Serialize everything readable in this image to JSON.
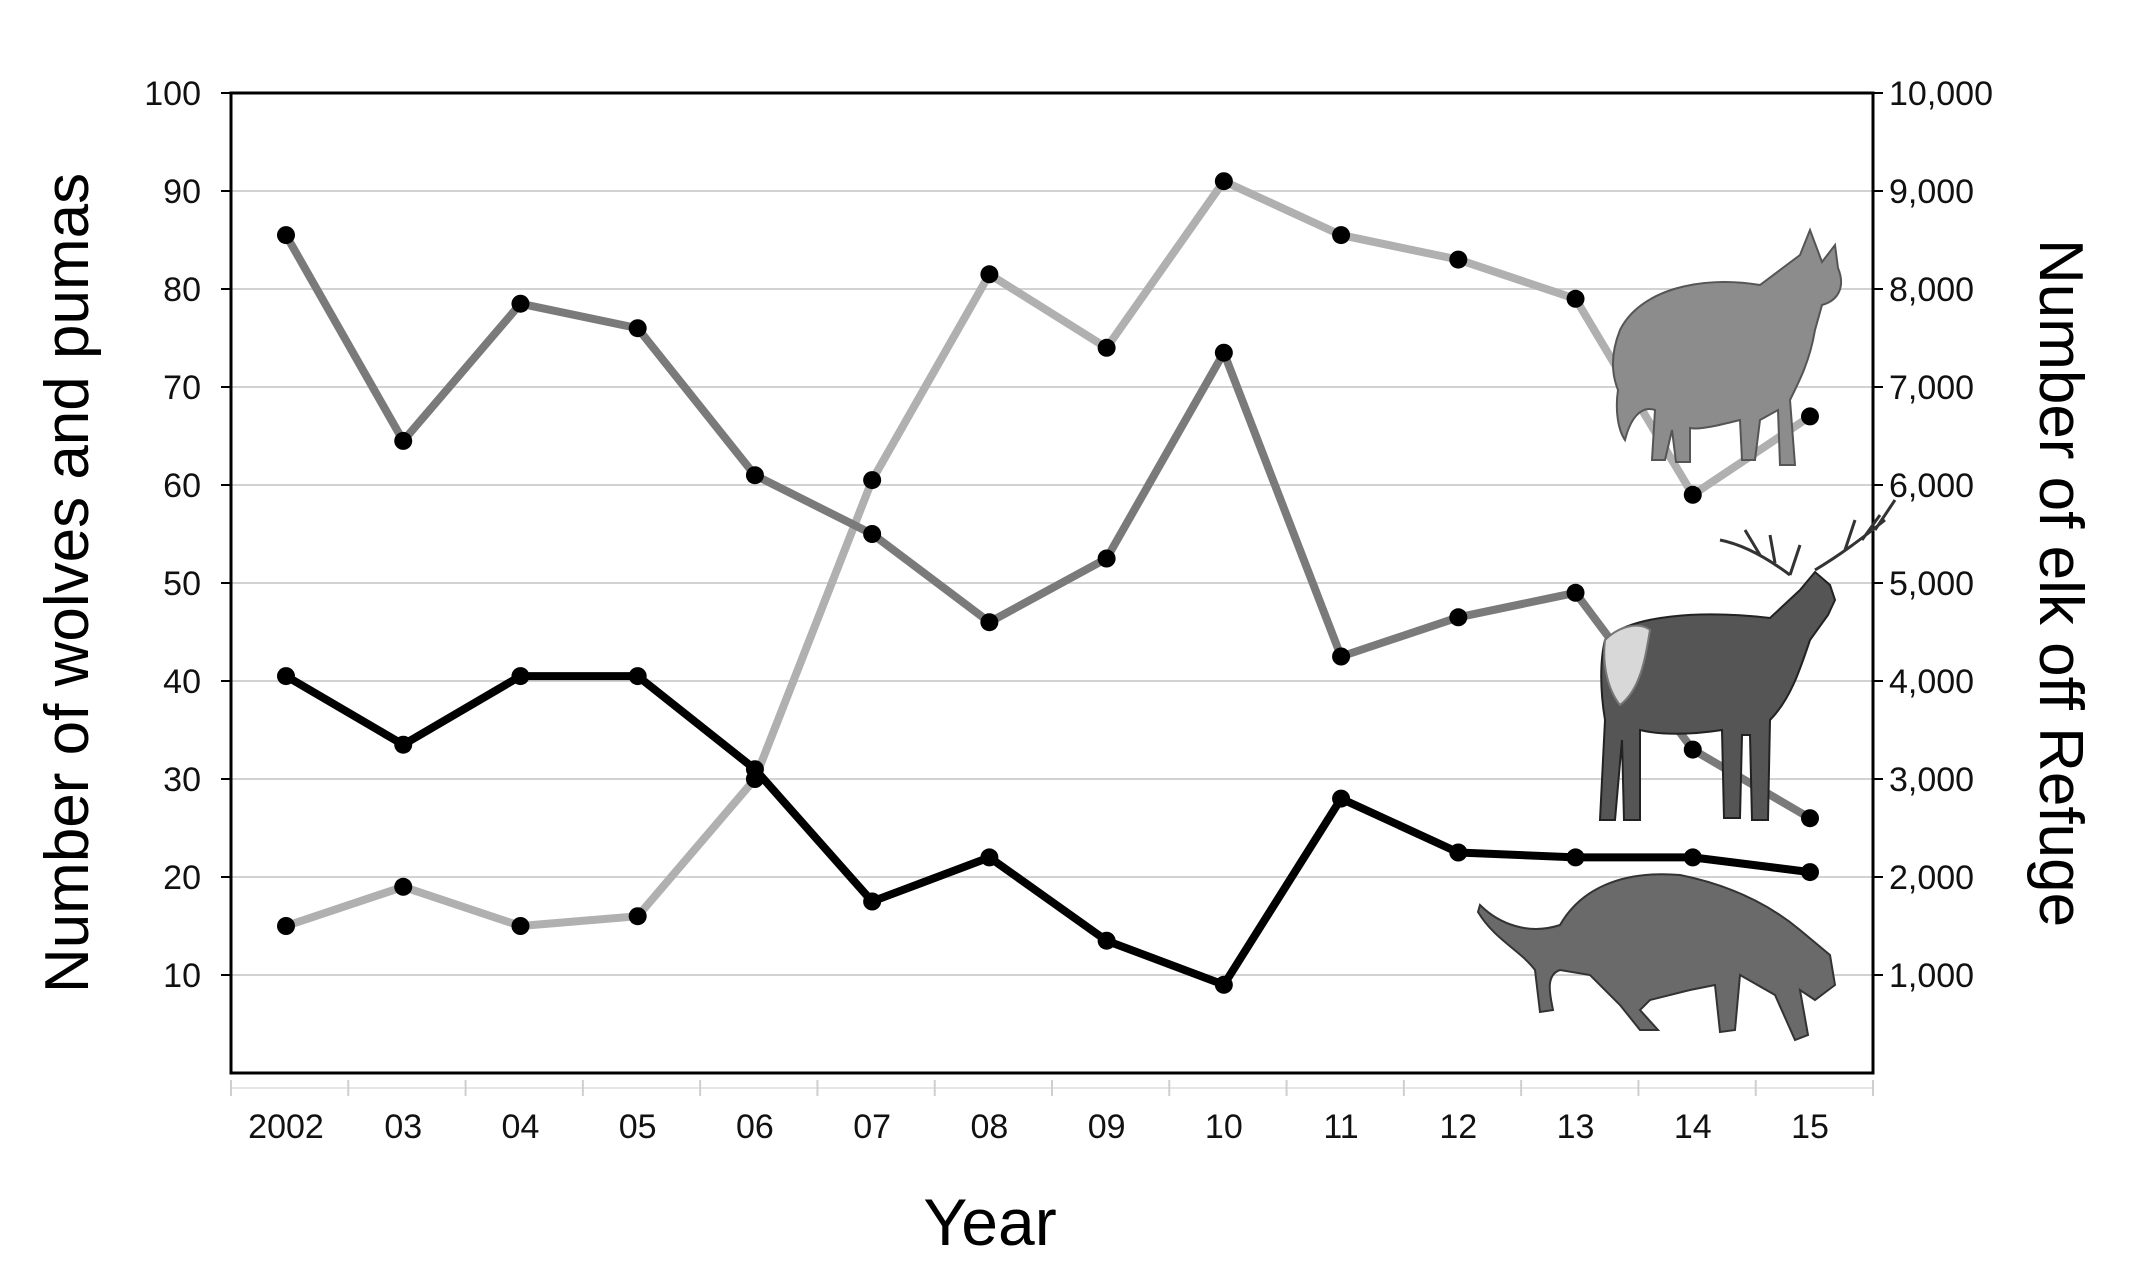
{
  "chart_data": {
    "type": "line",
    "categories": [
      "2002",
      "03",
      "04",
      "05",
      "06",
      "07",
      "08",
      "09",
      "10",
      "11",
      "12",
      "13",
      "14",
      "15"
    ],
    "xlabel": "Year",
    "ylabel": "Number of wolves and pumas",
    "ylabel_right": "Number of elk off Refuge",
    "ylim": [
      0,
      100
    ],
    "ylim_right": [
      0,
      10000
    ],
    "yticks": [
      "10",
      "20",
      "30",
      "40",
      "50",
      "60",
      "70",
      "80",
      "90",
      "100"
    ],
    "yticks_right": [
      "1,000",
      "2,000",
      "3,000",
      "4,000",
      "5,000",
      "6,000",
      "7,000",
      "8,000",
      "9,000",
      "10,000"
    ],
    "grid": true,
    "series": [
      {
        "axis": "left",
        "color": "#b0b0b0",
        "values": [
          15,
          19,
          15,
          16,
          30,
          60.5,
          81.5,
          74,
          91,
          85.5,
          83,
          79,
          59,
          67
        ]
      },
      {
        "axis": "right",
        "color": "#7a7a7a",
        "values": [
          8550,
          6450,
          7850,
          7600,
          6100,
          5500,
          4600,
          5250,
          7350,
          4250,
          4650,
          4900,
          3300,
          2600
        ]
      },
      {
        "axis": "left",
        "color": "#000000",
        "values": [
          40.5,
          33.5,
          40.5,
          40.5,
          31,
          17.5,
          22,
          13.5,
          9,
          28,
          22.5,
          22,
          22,
          20.5
        ]
      }
    ],
    "pictures": [
      "wolf-illustration",
      "elk-illustration",
      "puma-illustration"
    ]
  }
}
